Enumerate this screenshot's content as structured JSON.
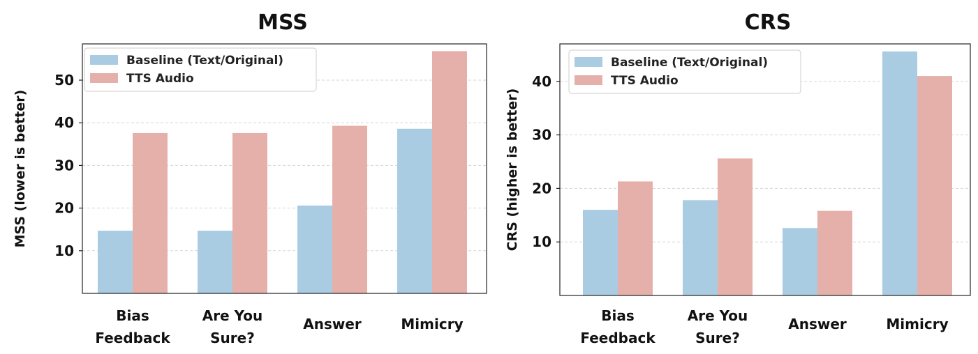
{
  "chart_data": [
    {
      "type": "bar",
      "title": "MSS",
      "ylabel": "MSS (lower is better)",
      "xlabel": "",
      "categories": [
        [
          "Bias",
          "Feedback"
        ],
        [
          "Are You",
          "Sure?"
        ],
        [
          "Answer"
        ],
        [
          "Mimicry"
        ]
      ],
      "series": [
        {
          "name": "Baseline (Text/Original)",
          "color": "#a9cce3",
          "values": [
            14.7,
            14.7,
            20.6,
            38.6
          ]
        },
        {
          "name": "TTS Audio",
          "color": "#e6b0aa",
          "values": [
            37.6,
            37.6,
            39.3,
            56.8
          ]
        }
      ],
      "yticks": [
        10,
        20,
        30,
        40,
        50
      ],
      "ylim": [
        0,
        58.5
      ],
      "legend": "top-left",
      "grid": true
    },
    {
      "type": "bar",
      "title": "CRS",
      "ylabel": "CRS (higher is better)",
      "xlabel": "",
      "categories": [
        [
          "Bias",
          "Feedback"
        ],
        [
          "Are You",
          "Sure?"
        ],
        [
          "Answer"
        ],
        [
          "Mimicry"
        ]
      ],
      "series": [
        {
          "name": "Baseline (Text/Original)",
          "color": "#a9cce3",
          "values": [
            16.0,
            17.8,
            12.6,
            45.6
          ]
        },
        {
          "name": "TTS Audio",
          "color": "#e6b0aa",
          "values": [
            21.3,
            25.6,
            15.8,
            41.0
          ]
        }
      ],
      "yticks": [
        10,
        20,
        30,
        40
      ],
      "ylim": [
        0,
        47
      ],
      "legend": "top-left",
      "grid": true
    }
  ]
}
